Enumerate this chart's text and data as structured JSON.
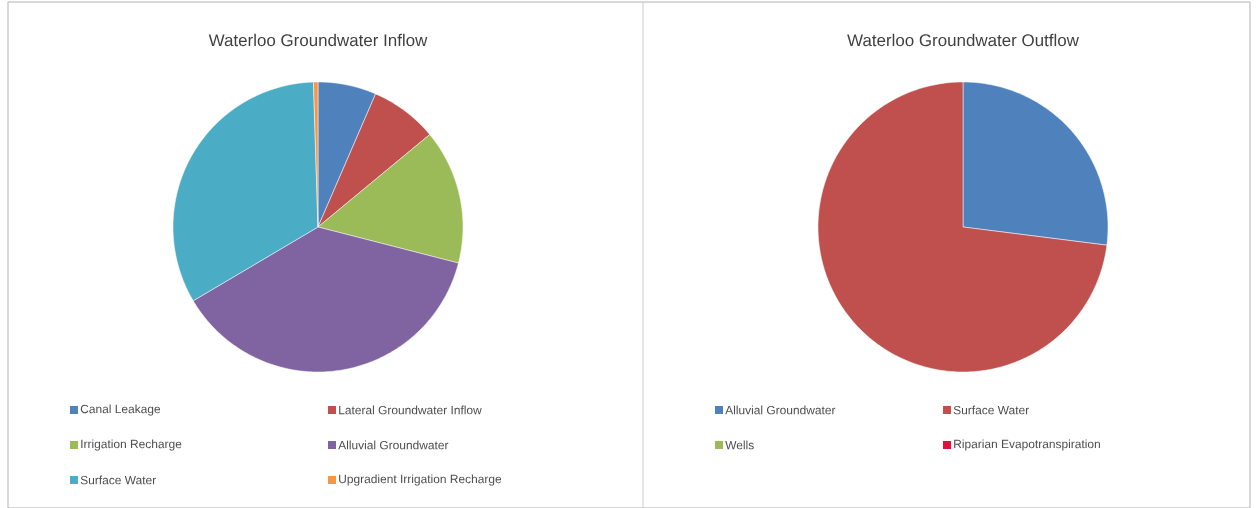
{
  "chart_data": [
    {
      "type": "pie",
      "title": "Waterloo Groundwater Inflow",
      "categories": [
        "Canal Leakage",
        "Lateral Groundwater Inflow",
        "Irrigation Recharge",
        "Alluvial Groundwater",
        "Surface Water",
        "Upgradient Irrigation Recharge"
      ],
      "values": [
        6.5,
        7.5,
        15,
        37.5,
        33,
        0.5
      ],
      "colors": [
        "#4f81bd",
        "#c0504d",
        "#9bbb59",
        "#8064a2",
        "#4bacc6",
        "#f79646"
      ],
      "legend": "bottom"
    },
    {
      "type": "pie",
      "title": "Waterloo Groundwater Outflow",
      "categories": [
        "Alluvial Groundwater",
        "Surface Water",
        "Wells",
        "Riparian Evapotranspiration"
      ],
      "values": [
        27,
        73,
        0,
        0
      ],
      "colors": [
        "#4f81bd",
        "#c0504d",
        "#9bbb59",
        "#e0103a"
      ],
      "legend": "bottom"
    }
  ]
}
